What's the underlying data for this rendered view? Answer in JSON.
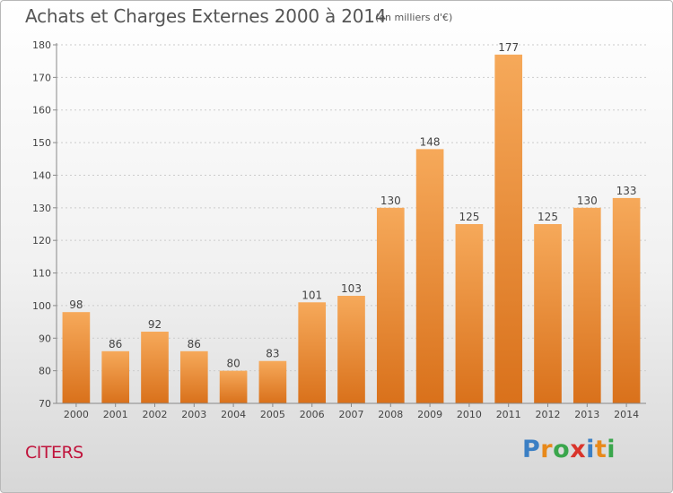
{
  "header": {
    "title": "Achats et Charges Externes 2000 à 2014",
    "unit": "(en milliers d'€)"
  },
  "footer": {
    "commune": "CITERS",
    "logo_text": "Proxiti",
    "logo_colors": [
      "#3b7fc4",
      "#e8891a",
      "#3aa64c",
      "#d9342b",
      "#3b7fc4",
      "#e8891a",
      "#3aa64c"
    ]
  },
  "colors": {
    "bar_top": "#f6a95a",
    "bar_bottom": "#d9711b",
    "grid": "#cccccc",
    "commune": "#c0143c"
  },
  "chart_data": {
    "type": "bar",
    "title": "Achats et Charges Externes 2000 à 2014",
    "xlabel": "",
    "ylabel": "",
    "categories": [
      "2000",
      "2001",
      "2002",
      "2003",
      "2004",
      "2005",
      "2006",
      "2007",
      "2008",
      "2009",
      "2010",
      "2011",
      "2012",
      "2013",
      "2014"
    ],
    "values": [
      98,
      86,
      92,
      86,
      80,
      83,
      101,
      103,
      130,
      148,
      125,
      177,
      125,
      130,
      133
    ],
    "ylim": [
      70,
      180
    ],
    "yticks": [
      70,
      80,
      90,
      100,
      110,
      120,
      130,
      140,
      150,
      160,
      170,
      180
    ],
    "grid": "horizontal dotted",
    "legend": "none",
    "data_labels": true
  }
}
